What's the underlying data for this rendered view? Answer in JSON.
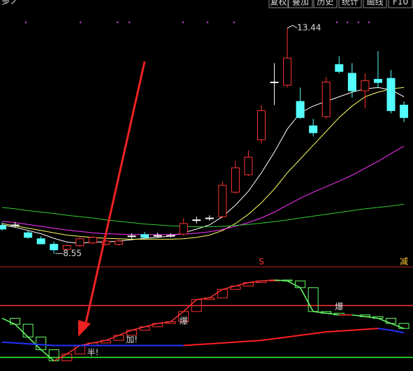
{
  "toolbar": {
    "title": "多ノ",
    "buttons": [
      "复权",
      "叠加",
      "历史",
      "统计",
      "画线",
      "F10"
    ]
  },
  "chart_data": [
    {
      "type": "candlestick",
      "categories": [
        null,
        null,
        null,
        null,
        null,
        null,
        null,
        null,
        null,
        null,
        null,
        null,
        null,
        null,
        null,
        null,
        null,
        null,
        null,
        null,
        null,
        null,
        null,
        null,
        null,
        null,
        null,
        null,
        null,
        null,
        null,
        null
      ],
      "open": [
        9.16,
        9.17,
        9.0,
        8.87,
        8.75,
        8.64,
        8.72,
        8.78,
        8.75,
        8.75,
        8.93,
        8.96,
        8.94,
        8.94,
        8.97,
        9.28,
        9.32,
        9.35,
        9.88,
        10.26,
        11.02,
        12.27,
        12.2,
        11.85,
        11.32,
        11.52,
        12.65,
        12.46,
        12.08,
        12.33,
        12.35,
        11.77
      ],
      "high": [
        9.23,
        9.23,
        9.05,
        8.93,
        8.81,
        8.75,
        8.9,
        8.93,
        8.85,
        8.87,
        8.99,
        9.02,
        9.0,
        8.99,
        9.32,
        9.35,
        9.38,
        10.11,
        10.56,
        10.79,
        11.77,
        12.68,
        13.44,
        12.15,
        11.47,
        12.38,
        12.83,
        12.68,
        12.46,
        12.94,
        12.53,
        11.85
      ],
      "low": [
        9.05,
        9.11,
        8.87,
        8.75,
        8.55,
        8.61,
        8.69,
        8.75,
        8.72,
        8.72,
        8.87,
        8.87,
        8.89,
        8.9,
        8.94,
        9.2,
        9.26,
        9.32,
        9.84,
        10.23,
        10.94,
        11.77,
        12.15,
        11.47,
        11.09,
        11.47,
        12.46,
        11.93,
        11.7,
        12.15,
        11.59,
        11.4
      ],
      "close": [
        9.08,
        9.17,
        8.9,
        8.76,
        8.63,
        8.72,
        8.87,
        8.9,
        8.82,
        8.82,
        8.93,
        8.9,
        8.94,
        8.94,
        9.2,
        9.28,
        9.32,
        10.03,
        10.41,
        10.64,
        11.65,
        12.27,
        12.79,
        11.5,
        11.17,
        12.27,
        12.5,
        12.08,
        12.3,
        12.26,
        11.65,
        11.5
      ],
      "up_color": "#ff3232",
      "down_color": "#54ffff",
      "flat_color": "#ffffff",
      "series": [
        {
          "name": "MA5",
          "color": "#ffffff",
          "values": [
            9.17,
            9.12,
            9.05,
            8.98,
            8.88,
            8.8,
            8.77,
            8.8,
            8.8,
            8.82,
            8.85,
            8.88,
            8.9,
            8.93,
            9.0,
            9.08,
            9.17,
            9.35,
            9.6,
            9.9,
            10.3,
            10.75,
            11.25,
            11.6,
            11.75,
            11.85,
            11.95,
            12.05,
            12.12,
            12.15,
            12.1,
            11.95
          ]
        },
        {
          "name": "MA10",
          "color": "#ffff66",
          "values": [
            9.2,
            9.15,
            9.1,
            9.05,
            9.0,
            8.95,
            8.92,
            8.9,
            8.88,
            8.87,
            8.86,
            8.86,
            8.86,
            8.86,
            8.87,
            8.9,
            8.95,
            9.05,
            9.2,
            9.4,
            9.65,
            9.95,
            10.3,
            10.6,
            10.9,
            11.2,
            11.5,
            11.75,
            11.95,
            12.05,
            12.12,
            12.15
          ]
        },
        {
          "name": "MA20",
          "color": "#ff33ff",
          "values": [
            9.25,
            9.22,
            9.18,
            9.14,
            9.1,
            9.06,
            9.03,
            9.0,
            8.98,
            8.97,
            8.96,
            8.96,
            8.96,
            8.96,
            8.97,
            8.99,
            9.02,
            9.07,
            9.14,
            9.22,
            9.32,
            9.45,
            9.6,
            9.75,
            9.88,
            10.0,
            10.12,
            10.25,
            10.4,
            10.55,
            10.72,
            10.88
          ]
        },
        {
          "name": "MA60",
          "color": "#33cc33",
          "values": [
            9.55,
            9.52,
            9.48,
            9.45,
            9.42,
            9.38,
            9.35,
            9.32,
            9.28,
            9.25,
            9.22,
            9.19,
            9.17,
            9.15,
            9.14,
            9.13,
            9.13,
            9.14,
            9.16,
            9.18,
            9.21,
            9.24,
            9.28,
            9.32,
            9.36,
            9.4,
            9.44,
            9.48,
            9.52,
            9.55,
            9.58,
            9.62
          ]
        }
      ],
      "high_label": 13.44,
      "low_label": 8.55,
      "signals": [
        {
          "label": "S",
          "index": 20,
          "color": "#ff3232"
        },
        {
          "label": "减",
          "index": 31,
          "color": "#ffcc33"
        }
      ],
      "ylim": [
        8.29,
        14.05
      ]
    },
    {
      "type": "box-indicator",
      "values": [
        62,
        55,
        40,
        25,
        12,
        20,
        30,
        33,
        36,
        42,
        48,
        52,
        56,
        58,
        70,
        84,
        86,
        96,
        100,
        104,
        106,
        107,
        106,
        98,
        70,
        68,
        66,
        66,
        64,
        62,
        56,
        50
      ],
      "up_color": "#ff3232",
      "down_color": "#66ff66",
      "signal_line": {
        "color": "#2233ff",
        "rising_color": "#ff2020",
        "values": [
          34,
          33,
          32,
          31,
          30,
          30,
          30,
          30,
          30,
          30,
          30,
          30,
          30,
          30,
          30,
          31,
          32,
          33,
          34,
          35,
          36,
          38,
          40,
          42,
          44,
          46,
          47,
          48,
          49,
          50,
          48,
          45
        ]
      },
      "levels": [
        {
          "value": 77,
          "color": "#ff3232"
        },
        {
          "value": 16,
          "color": "#33ff33"
        }
      ],
      "annotations": [
        {
          "label": "半!",
          "index": 7,
          "position": "below"
        },
        {
          "label": "加!",
          "index": 10,
          "position": "below"
        },
        {
          "label": "爆",
          "index": 14,
          "position": "below"
        },
        {
          "label": "爆",
          "index": 26,
          "position": "above"
        }
      ],
      "ylim": [
        0,
        120
      ]
    }
  ]
}
